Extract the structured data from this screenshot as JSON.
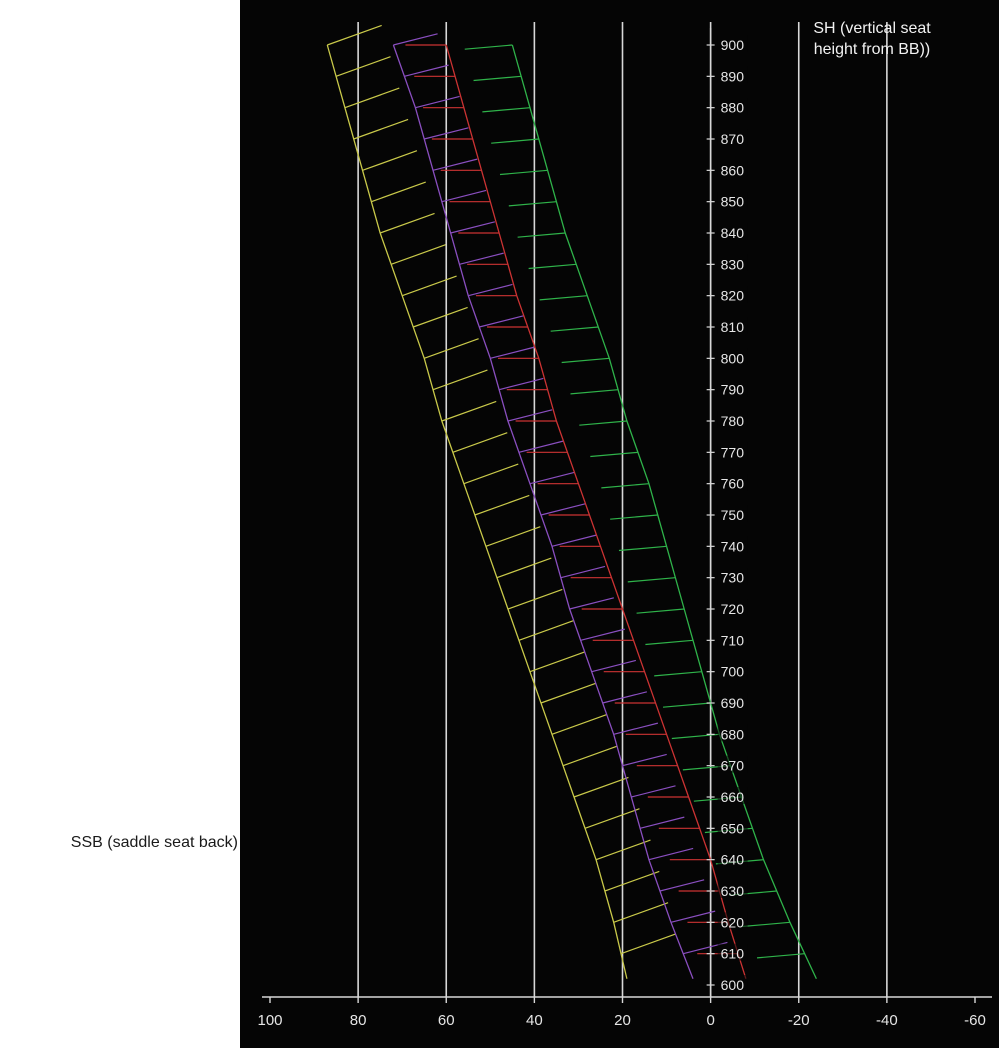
{
  "chart_data": {
    "type": "line",
    "xlabel": "SSB (saddle seat back)",
    "ylabel": "SH (vertical seat\nheight from BB))",
    "xlim": [
      100,
      -60
    ],
    "ylim": [
      600,
      900
    ],
    "x_ticks": [
      100,
      80,
      60,
      40,
      20,
      0,
      -20,
      -40,
      -60
    ],
    "y_ticks": [
      900,
      890,
      880,
      870,
      860,
      850,
      840,
      830,
      820,
      810,
      800,
      790,
      780,
      770,
      760,
      750,
      740,
      730,
      720,
      710,
      700,
      690,
      680,
      670,
      660,
      650,
      640,
      630,
      620,
      610,
      600
    ],
    "vertical_gridlines": [
      80,
      60,
      40,
      20,
      0,
      -20,
      -40
    ],
    "grid": true,
    "series": [
      {
        "color": "#c9c94a",
        "boundary": [
          {
            "x": 87,
            "y": 900
          },
          {
            "x": 83,
            "y": 880
          },
          {
            "x": 79,
            "y": 860
          },
          {
            "x": 75,
            "y": 840
          },
          {
            "x": 70,
            "y": 820
          },
          {
            "x": 65,
            "y": 800
          },
          {
            "x": 61,
            "y": 780
          },
          {
            "x": 56,
            "y": 760
          },
          {
            "x": 51,
            "y": 740
          },
          {
            "x": 46,
            "y": 720
          },
          {
            "x": 41,
            "y": 700
          },
          {
            "x": 36,
            "y": 680
          },
          {
            "x": 31,
            "y": 660
          },
          {
            "x": 26,
            "y": 640
          },
          {
            "x": 22,
            "y": 620
          },
          {
            "x": 19,
            "y": 602
          }
        ],
        "hatch_dx": 16,
        "hatch_dy": 14
      },
      {
        "color": "#8a4fc0",
        "boundary": [
          {
            "x": 72,
            "y": 900
          },
          {
            "x": 67,
            "y": 880
          },
          {
            "x": 63,
            "y": 860
          },
          {
            "x": 59,
            "y": 840
          },
          {
            "x": 55,
            "y": 820
          },
          {
            "x": 50,
            "y": 800
          },
          {
            "x": 46,
            "y": 780
          },
          {
            "x": 41,
            "y": 760
          },
          {
            "x": 36,
            "y": 740
          },
          {
            "x": 32,
            "y": 720
          },
          {
            "x": 27,
            "y": 700
          },
          {
            "x": 22,
            "y": 680
          },
          {
            "x": 18,
            "y": 660
          },
          {
            "x": 14,
            "y": 640
          },
          {
            "x": 9,
            "y": 620
          },
          {
            "x": 4,
            "y": 602
          }
        ],
        "hatch_dx": 13,
        "hatch_dy": 8
      },
      {
        "color": "#cc3333",
        "boundary": [
          {
            "x": 60,
            "y": 900
          },
          {
            "x": 56,
            "y": 880
          },
          {
            "x": 52,
            "y": 860
          },
          {
            "x": 48,
            "y": 840
          },
          {
            "x": 44,
            "y": 820
          },
          {
            "x": 39,
            "y": 800
          },
          {
            "x": 35,
            "y": 780
          },
          {
            "x": 30,
            "y": 760
          },
          {
            "x": 25,
            "y": 740
          },
          {
            "x": 20,
            "y": 720
          },
          {
            "x": 15,
            "y": 700
          },
          {
            "x": 10,
            "y": 680
          },
          {
            "x": 5,
            "y": 660
          },
          {
            "x": 0,
            "y": 640
          },
          {
            "x": -4,
            "y": 620
          },
          {
            "x": -8,
            "y": 602
          }
        ],
        "hatch_dx": -12,
        "hatch_dy": 0
      },
      {
        "color": "#2fb34a",
        "boundary": [
          {
            "x": 45,
            "y": 900
          },
          {
            "x": 41,
            "y": 880
          },
          {
            "x": 37,
            "y": 860
          },
          {
            "x": 33,
            "y": 840
          },
          {
            "x": 28,
            "y": 820
          },
          {
            "x": 23,
            "y": 800
          },
          {
            "x": 19,
            "y": 780
          },
          {
            "x": 14,
            "y": 760
          },
          {
            "x": 10,
            "y": 740
          },
          {
            "x": 6,
            "y": 720
          },
          {
            "x": 2,
            "y": 700
          },
          {
            "x": -2,
            "y": 680
          },
          {
            "x": -7,
            "y": 660
          },
          {
            "x": -12,
            "y": 640
          },
          {
            "x": -18,
            "y": 620
          },
          {
            "x": -24,
            "y": 602
          }
        ],
        "hatch_dx": -14,
        "hatch_dy": -3
      }
    ]
  }
}
